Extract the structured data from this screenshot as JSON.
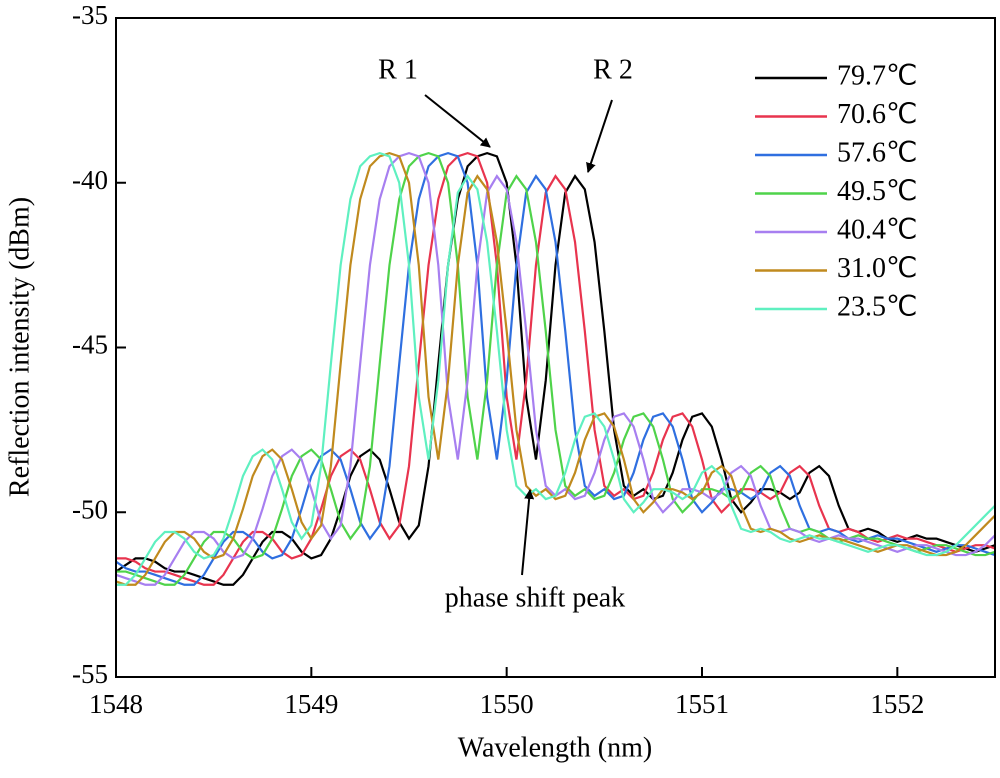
{
  "chart_data": {
    "type": "line",
    "xlabel": "Wavelength (nm)",
    "ylabel": "Reflection intensity (dBm)",
    "xlim": [
      1548,
      1552.5
    ],
    "xticks": [
      1548,
      1549,
      1550,
      1551,
      1552
    ],
    "ylim": [
      -55,
      -35
    ],
    "yticks": [
      -55,
      -50,
      -45,
      -40,
      -35
    ],
    "legend": "upper right",
    "annotations": [
      "R 1",
      "R 2",
      "phase shift peak"
    ],
    "x": [
      1548,
      1548.05,
      1548.1,
      1548.15,
      1548.2,
      1548.25,
      1548.3,
      1548.35,
      1548.4,
      1548.45,
      1548.5,
      1548.55,
      1548.6,
      1548.65,
      1548.7,
      1548.75,
      1548.8,
      1548.85,
      1548.9,
      1548.95,
      1549,
      1549.05,
      1549.1,
      1549.15,
      1549.2,
      1549.25,
      1549.3,
      1549.35,
      1549.4,
      1549.45,
      1549.5,
      1549.55,
      1549.6,
      1549.65,
      1549.7,
      1549.75,
      1549.8,
      1549.85,
      1549.9,
      1549.95,
      1550,
      1550.05,
      1550.1,
      1550.15,
      1550.2,
      1550.25,
      1550.3,
      1550.35,
      1550.4,
      1550.45,
      1550.5,
      1550.55,
      1550.6,
      1550.65,
      1550.7,
      1550.75,
      1550.8,
      1550.85,
      1550.9,
      1550.95,
      1551,
      1551.05,
      1551.1,
      1551.15,
      1551.2,
      1551.25,
      1551.3,
      1551.35,
      1551.4,
      1551.45,
      1551.5,
      1551.55,
      1551.6,
      1551.65,
      1551.7,
      1551.75,
      1551.8,
      1551.85,
      1551.9,
      1551.95,
      1552,
      1552.05,
      1552.1,
      1552.15,
      1552.2,
      1552.25,
      1552.3,
      1552.35,
      1552.4,
      1552.45,
      1552.5
    ],
    "series": [
      {
        "name": "79.7℃",
        "color": "#000000",
        "values": [
          -51.8,
          -51.6,
          -51.4,
          -51.4,
          -51.5,
          -51.7,
          -51.8,
          -51.8,
          -51.9,
          -52.0,
          -52.1,
          -52.2,
          -52.2,
          -51.9,
          -51.4,
          -50.9,
          -50.6,
          -50.6,
          -50.8,
          -51.2,
          -51.4,
          -51.3,
          -50.8,
          -49.9,
          -48.9,
          -48.3,
          -48.1,
          -48.4,
          -49.3,
          -50.3,
          -50.8,
          -50.4,
          -48.6,
          -45.5,
          -42.5,
          -40.5,
          -39.5,
          -39.2,
          -39.1,
          -39.2,
          -40.0,
          -42.5,
          -46.5,
          -48.4,
          -46.0,
          -42.5,
          -40.3,
          -39.8,
          -40.2,
          -41.8,
          -44.5,
          -47.5,
          -49.2,
          -49.5,
          -49.3,
          -49.6,
          -49.5,
          -48.8,
          -47.8,
          -47.1,
          -47.0,
          -47.4,
          -48.4,
          -49.6,
          -50.0,
          -49.7,
          -49.3,
          -49.3,
          -49.4,
          -49.6,
          -49.4,
          -48.8,
          -48.6,
          -48.9,
          -49.8,
          -50.5,
          -50.6,
          -50.5,
          -50.6,
          -50.8,
          -50.9,
          -50.8,
          -50.7,
          -50.8,
          -50.8,
          -50.9,
          -51.0,
          -51.1,
          -51.2,
          -51.1,
          -51.0
        ]
      },
      {
        "name": "70.6℃",
        "color": "#e8344e",
        "values": [
          -51.4,
          -51.4,
          -51.5,
          -51.7,
          -51.8,
          -51.8,
          -51.9,
          -52.0,
          -52.1,
          -52.2,
          -52.2,
          -51.9,
          -51.4,
          -50.9,
          -50.6,
          -50.6,
          -50.8,
          -51.2,
          -51.4,
          -51.3,
          -50.8,
          -49.9,
          -48.9,
          -48.3,
          -48.1,
          -48.4,
          -49.3,
          -50.3,
          -50.8,
          -50.4,
          -48.6,
          -45.5,
          -42.5,
          -40.5,
          -39.5,
          -39.2,
          -39.1,
          -39.2,
          -40.0,
          -42.5,
          -46.5,
          -48.4,
          -46.0,
          -42.5,
          -40.3,
          -39.8,
          -40.2,
          -41.8,
          -44.5,
          -47.5,
          -49.2,
          -49.5,
          -49.3,
          -49.6,
          -49.5,
          -48.8,
          -47.8,
          -47.1,
          -47.0,
          -47.4,
          -48.4,
          -49.6,
          -50.0,
          -49.7,
          -49.3,
          -49.3,
          -49.4,
          -49.6,
          -49.4,
          -48.8,
          -48.6,
          -48.9,
          -49.8,
          -50.5,
          -50.6,
          -50.5,
          -50.6,
          -50.8,
          -50.9,
          -50.8,
          -50.7,
          -50.8,
          -50.8,
          -50.9,
          -51.0,
          -51.1,
          -51.2,
          -51.1,
          -51.0,
          -51.0,
          -51.1
        ]
      },
      {
        "name": "57.6℃",
        "color": "#2f6fe0",
        "values": [
          -51.5,
          -51.7,
          -51.8,
          -51.8,
          -51.9,
          -52.0,
          -52.1,
          -52.2,
          -52.2,
          -51.9,
          -51.4,
          -50.9,
          -50.6,
          -50.6,
          -50.8,
          -51.2,
          -51.4,
          -51.3,
          -50.8,
          -49.9,
          -48.9,
          -48.3,
          -48.1,
          -48.4,
          -49.3,
          -50.3,
          -50.8,
          -50.4,
          -48.6,
          -45.5,
          -42.5,
          -40.5,
          -39.5,
          -39.2,
          -39.1,
          -39.2,
          -40.0,
          -42.5,
          -46.5,
          -48.4,
          -46.0,
          -42.5,
          -40.3,
          -39.8,
          -40.2,
          -41.8,
          -44.5,
          -47.5,
          -49.2,
          -49.5,
          -49.3,
          -49.6,
          -49.5,
          -48.8,
          -47.8,
          -47.1,
          -47.0,
          -47.4,
          -48.4,
          -49.6,
          -50.0,
          -49.7,
          -49.3,
          -49.3,
          -49.4,
          -49.6,
          -49.4,
          -48.8,
          -48.6,
          -48.9,
          -49.8,
          -50.5,
          -50.6,
          -50.5,
          -50.6,
          -50.8,
          -50.9,
          -50.8,
          -50.7,
          -50.8,
          -50.8,
          -50.9,
          -51.0,
          -51.1,
          -51.2,
          -51.1,
          -51.0,
          -51.0,
          -51.1,
          -51.2,
          -51.3
        ]
      },
      {
        "name": "49.5℃",
        "color": "#4fd34a",
        "values": [
          -51.8,
          -51.8,
          -51.9,
          -52.0,
          -52.1,
          -52.2,
          -52.2,
          -51.9,
          -51.4,
          -50.9,
          -50.6,
          -50.6,
          -50.8,
          -51.2,
          -51.4,
          -51.3,
          -50.8,
          -49.9,
          -48.9,
          -48.3,
          -48.1,
          -48.4,
          -49.3,
          -50.3,
          -50.8,
          -50.4,
          -48.6,
          -45.5,
          -42.5,
          -40.5,
          -39.5,
          -39.2,
          -39.1,
          -39.2,
          -40.0,
          -42.5,
          -46.5,
          -48.4,
          -46.0,
          -42.5,
          -40.3,
          -39.8,
          -40.2,
          -41.8,
          -44.5,
          -47.5,
          -49.2,
          -49.5,
          -49.3,
          -49.6,
          -49.5,
          -48.8,
          -47.8,
          -47.1,
          -47.0,
          -47.4,
          -48.4,
          -49.6,
          -50.0,
          -49.7,
          -49.3,
          -49.3,
          -49.4,
          -49.6,
          -49.4,
          -48.8,
          -48.6,
          -48.9,
          -49.8,
          -50.5,
          -50.6,
          -50.5,
          -50.6,
          -50.8,
          -50.9,
          -50.8,
          -50.7,
          -50.8,
          -50.8,
          -50.9,
          -51.0,
          -51.1,
          -51.2,
          -51.1,
          -51.0,
          -51.0,
          -51.1,
          -51.2,
          -51.3,
          -51.3,
          -51.2
        ]
      },
      {
        "name": "40.4℃",
        "color": "#a77ff0",
        "values": [
          -51.9,
          -52.0,
          -52.1,
          -52.2,
          -52.2,
          -51.9,
          -51.4,
          -50.9,
          -50.6,
          -50.6,
          -50.8,
          -51.2,
          -51.4,
          -51.3,
          -50.8,
          -49.9,
          -48.9,
          -48.3,
          -48.1,
          -48.4,
          -49.3,
          -50.3,
          -50.8,
          -50.4,
          -48.6,
          -45.5,
          -42.5,
          -40.5,
          -39.5,
          -39.2,
          -39.1,
          -39.2,
          -40.0,
          -42.5,
          -46.5,
          -48.4,
          -46.0,
          -42.5,
          -40.3,
          -39.8,
          -40.2,
          -41.8,
          -44.5,
          -47.5,
          -49.2,
          -49.5,
          -49.3,
          -49.6,
          -49.5,
          -48.8,
          -47.8,
          -47.1,
          -47.0,
          -47.4,
          -48.4,
          -49.6,
          -50.0,
          -49.7,
          -49.3,
          -49.3,
          -49.4,
          -49.6,
          -49.4,
          -48.8,
          -48.6,
          -48.9,
          -49.8,
          -50.5,
          -50.6,
          -50.5,
          -50.6,
          -50.8,
          -50.9,
          -50.8,
          -50.7,
          -50.8,
          -50.8,
          -50.9,
          -51.0,
          -51.1,
          -51.2,
          -51.1,
          -51.0,
          -51.0,
          -51.1,
          -51.2,
          -51.3,
          -51.3,
          -51.2,
          -51.0,
          -50.7
        ]
      },
      {
        "name": "31.0℃",
        "color": "#c08a1e",
        "values": [
          -52.1,
          -52.2,
          -52.2,
          -51.9,
          -51.4,
          -50.9,
          -50.6,
          -50.6,
          -50.8,
          -51.2,
          -51.4,
          -51.3,
          -50.8,
          -49.9,
          -48.9,
          -48.3,
          -48.1,
          -48.4,
          -49.3,
          -50.3,
          -50.8,
          -50.4,
          -48.6,
          -45.5,
          -42.5,
          -40.5,
          -39.5,
          -39.2,
          -39.1,
          -39.2,
          -40.0,
          -42.5,
          -46.5,
          -48.4,
          -46.0,
          -42.5,
          -40.3,
          -39.8,
          -40.2,
          -41.8,
          -44.5,
          -47.5,
          -49.2,
          -49.5,
          -49.3,
          -49.6,
          -49.5,
          -48.8,
          -47.8,
          -47.1,
          -47.0,
          -47.4,
          -48.4,
          -49.6,
          -50.0,
          -49.7,
          -49.3,
          -49.3,
          -49.4,
          -49.6,
          -49.4,
          -48.8,
          -48.6,
          -48.9,
          -49.8,
          -50.5,
          -50.6,
          -50.5,
          -50.6,
          -50.8,
          -50.9,
          -50.8,
          -50.7,
          -50.8,
          -50.8,
          -50.9,
          -51.0,
          -51.1,
          -51.2,
          -51.1,
          -51.0,
          -51.0,
          -51.1,
          -51.2,
          -51.3,
          -51.3,
          -51.2,
          -51.0,
          -50.7,
          -50.4,
          -50.1
        ]
      },
      {
        "name": "23.5℃",
        "color": "#5ff0c0",
        "values": [
          -52.2,
          -52.2,
          -51.9,
          -51.4,
          -50.9,
          -50.6,
          -50.6,
          -50.8,
          -51.2,
          -51.4,
          -51.3,
          -50.8,
          -49.9,
          -48.9,
          -48.3,
          -48.1,
          -48.4,
          -49.3,
          -50.3,
          -50.8,
          -50.4,
          -48.6,
          -45.5,
          -42.5,
          -40.5,
          -39.5,
          -39.2,
          -39.1,
          -39.2,
          -40.0,
          -42.5,
          -46.5,
          -48.4,
          -46.0,
          -42.5,
          -40.3,
          -39.8,
          -40.2,
          -41.8,
          -44.5,
          -47.5,
          -49.2,
          -49.5,
          -49.3,
          -49.6,
          -49.5,
          -48.8,
          -47.8,
          -47.1,
          -47.0,
          -47.4,
          -48.4,
          -49.6,
          -50.0,
          -49.7,
          -49.3,
          -49.3,
          -49.4,
          -49.6,
          -49.4,
          -48.8,
          -48.6,
          -48.9,
          -49.8,
          -50.5,
          -50.6,
          -50.5,
          -50.6,
          -50.8,
          -50.9,
          -50.8,
          -50.7,
          -50.8,
          -50.8,
          -50.9,
          -51.0,
          -51.1,
          -51.2,
          -51.1,
          -51.0,
          -51.0,
          -51.1,
          -51.2,
          -51.3,
          -51.3,
          -51.2,
          -51.0,
          -50.7,
          -50.4,
          -50.1,
          -49.8
        ]
      }
    ]
  }
}
